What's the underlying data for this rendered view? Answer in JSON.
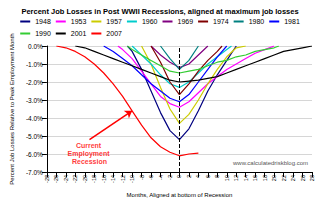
{
  "chart_data": {
    "type": "line",
    "title": "Percent Job Losses in Post WWII Recessions, aligned at maximum job losses",
    "x_label": "Months, Aligned at bottom of Recession",
    "y_label": "Percent Job Losses Relative to Peak Employment Month",
    "source": "www.calculatedriskblog.com",
    "xlim": [
      -28,
      28
    ],
    "xticks": [
      -28,
      -26,
      -24,
      -22,
      -20,
      -18,
      -16,
      -14,
      -12,
      -10,
      -8,
      -6,
      -4,
      -2,
      0,
      2,
      4,
      6,
      8,
      10,
      12,
      14,
      16,
      18,
      20,
      22,
      24,
      26,
      28
    ],
    "ylim": [
      -7,
      0
    ],
    "yticks": [
      {
        "value": 0,
        "label": "0.0%"
      },
      {
        "value": -1,
        "label": "-1.0%"
      },
      {
        "value": -2,
        "label": "-2.0%"
      },
      {
        "value": -3,
        "label": "-3.0%"
      },
      {
        "value": -4,
        "label": "-4.0%"
      },
      {
        "value": -5,
        "label": "-5.0%"
      },
      {
        "value": -6,
        "label": "-6.0%"
      },
      {
        "value": -7,
        "label": "-7.0%"
      }
    ],
    "grid": true,
    "legend": "top",
    "reference_x": 0,
    "annotations": [
      {
        "text": "Current Employment Recession",
        "x": -19,
        "y": -5.2,
        "target": [
          -10,
          -3.6
        ]
      }
    ],
    "series": [
      {
        "name": "1948",
        "color": "#000080",
        "x": [
          -11,
          -10,
          -8,
          -6,
          -4,
          -2,
          0,
          2,
          4,
          6,
          8,
          10,
          12
        ],
        "values": [
          0,
          -0.3,
          -1.3,
          -2.5,
          -3.7,
          -4.7,
          -5.2,
          -4.6,
          -3.6,
          -2.5,
          -1.6,
          -0.8,
          0
        ]
      },
      {
        "name": "1953",
        "color": "#ff00ff",
        "x": [
          -13,
          -12,
          -10,
          -8,
          -6,
          -4,
          -2,
          0,
          2,
          4,
          6,
          8,
          10,
          12,
          14,
          16,
          18,
          20
        ],
        "values": [
          0,
          -0.2,
          -0.7,
          -1.4,
          -2.1,
          -2.8,
          -3.2,
          -3.4,
          -3.1,
          -2.6,
          -2.1,
          -1.7,
          -1.3,
          -1.0,
          -0.7,
          -0.4,
          -0.2,
          0
        ]
      },
      {
        "name": "1957",
        "color": "#cccc00",
        "x": [
          -8,
          -6,
          -4,
          -2,
          0,
          2,
          4,
          6,
          8,
          10,
          12,
          14
        ],
        "values": [
          0,
          -1.0,
          -2.3,
          -3.5,
          -4.3,
          -3.8,
          -3.0,
          -2.1,
          -1.3,
          -0.6,
          -0.1,
          0
        ]
      },
      {
        "name": "1960",
        "color": "#00cccc",
        "x": [
          -10,
          -8,
          -6,
          -4,
          -2,
          0,
          2,
          4,
          6,
          8,
          10,
          11
        ],
        "values": [
          0,
          -0.5,
          -1.0,
          -1.6,
          -2.1,
          -2.3,
          -2.0,
          -1.5,
          -1.0,
          -0.6,
          -0.2,
          0
        ]
      },
      {
        "name": "1969",
        "color": "#800080",
        "x": [
          -6,
          -4,
          -2,
          0,
          2,
          4,
          6
        ],
        "values": [
          0,
          -0.5,
          -0.9,
          -1.2,
          -1.0,
          -0.5,
          0
        ]
      },
      {
        "name": "1974",
        "color": "#800000",
        "x": [
          -6,
          -4,
          -2,
          0,
          2,
          4,
          6,
          8,
          9
        ],
        "values": [
          0,
          -0.9,
          -2.0,
          -2.7,
          -2.1,
          -1.4,
          -0.8,
          -0.3,
          0
        ]
      },
      {
        "name": "1980",
        "color": "#008080",
        "x": [
          -4,
          -2,
          0,
          2,
          4
        ],
        "values": [
          0,
          -0.7,
          -1.3,
          -0.8,
          0
        ]
      },
      {
        "name": "1981",
        "color": "#0000ff",
        "x": [
          -16,
          -14,
          -12,
          -10,
          -8,
          -6,
          -4,
          -2,
          0,
          2,
          4,
          6,
          8,
          10
        ],
        "values": [
          0,
          -0.3,
          -0.7,
          -1.1,
          -1.6,
          -2.1,
          -2.5,
          -2.9,
          -3.1,
          -2.7,
          -2.0,
          -1.3,
          -0.6,
          0
        ]
      },
      {
        "name": "1990",
        "color": "#33cc33",
        "x": [
          -11,
          -10,
          -8,
          -6,
          -4,
          -2,
          0,
          2,
          4,
          6,
          8,
          10,
          12,
          14,
          16,
          18,
          20,
          21
        ],
        "values": [
          0,
          -0.2,
          -0.5,
          -0.8,
          -1.1,
          -1.4,
          -1.5,
          -1.4,
          -1.3,
          -1.1,
          -0.9,
          -0.8,
          -0.6,
          -0.5,
          -0.3,
          -0.2,
          -0.1,
          0
        ]
      },
      {
        "name": "2001",
        "color": "#000000",
        "x": [
          -22,
          -20,
          -18,
          -16,
          -14,
          -12,
          -10,
          -8,
          -6,
          -4,
          -2,
          0,
          2,
          4,
          6,
          8,
          10,
          12,
          14,
          16,
          18,
          20,
          22,
          24,
          26,
          28
        ],
        "values": [
          0,
          -0.1,
          -0.3,
          -0.5,
          -0.7,
          -0.9,
          -1.1,
          -1.3,
          -1.5,
          -1.7,
          -1.9,
          -2.0,
          -1.95,
          -1.9,
          -1.8,
          -1.7,
          -1.5,
          -1.3,
          -1.1,
          -0.9,
          -0.7,
          -0.5,
          -0.3,
          -0.2,
          -0.1,
          0
        ]
      },
      {
        "name": "2007",
        "color": "#ff0000",
        "x": [
          -26,
          -24,
          -22,
          -20,
          -18,
          -16,
          -14,
          -12,
          -10,
          -8,
          -6,
          -4,
          -2,
          0,
          2,
          4
        ],
        "values": [
          0,
          -0.1,
          -0.3,
          -0.6,
          -1.0,
          -1.5,
          -2.1,
          -2.8,
          -3.6,
          -4.4,
          -5.1,
          -5.6,
          -5.9,
          -6.1,
          -6.0,
          -5.95
        ]
      }
    ]
  }
}
